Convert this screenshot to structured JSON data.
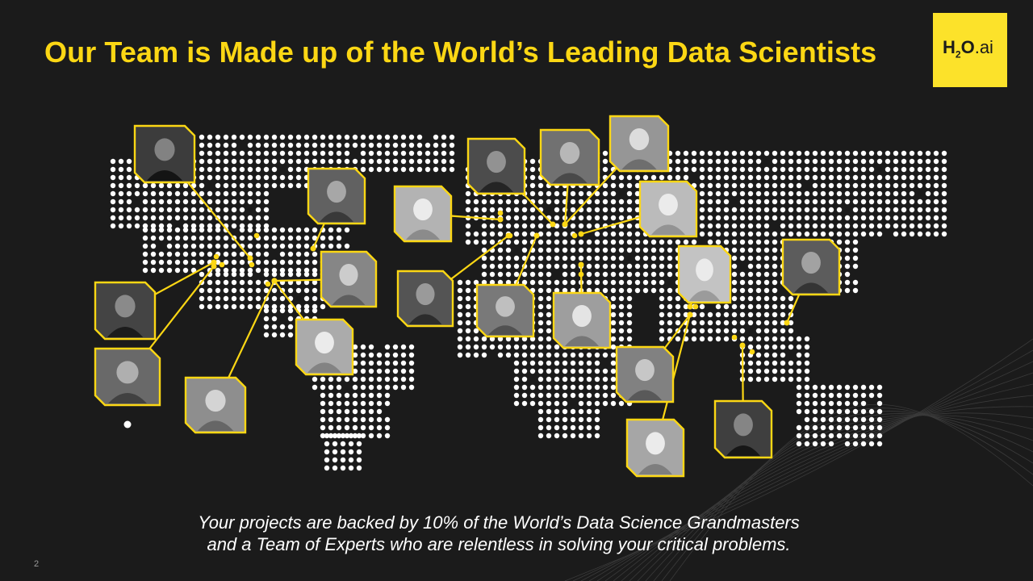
{
  "slide": {
    "title": "Our Team is Made up of the World’s Leading Data Scientists",
    "caption_line1": "Your projects are backed by 10% of the World’s Data Science Grandmasters",
    "caption_line2": "and a Team of Experts who are relentless in solving your critical problems.",
    "page_number": "2"
  },
  "logo": {
    "text_h": "H",
    "text_2": "2",
    "text_o": "O",
    "text_ai": ".ai",
    "background_color": "#fce22a"
  },
  "colors": {
    "background": "#1b1b1b",
    "accent_yellow": "#fcd714",
    "map_dots": "#ffffff",
    "text": "#ffffff"
  },
  "team_photos": [
    {
      "name": "team-member-photo",
      "count": 22
    }
  ]
}
